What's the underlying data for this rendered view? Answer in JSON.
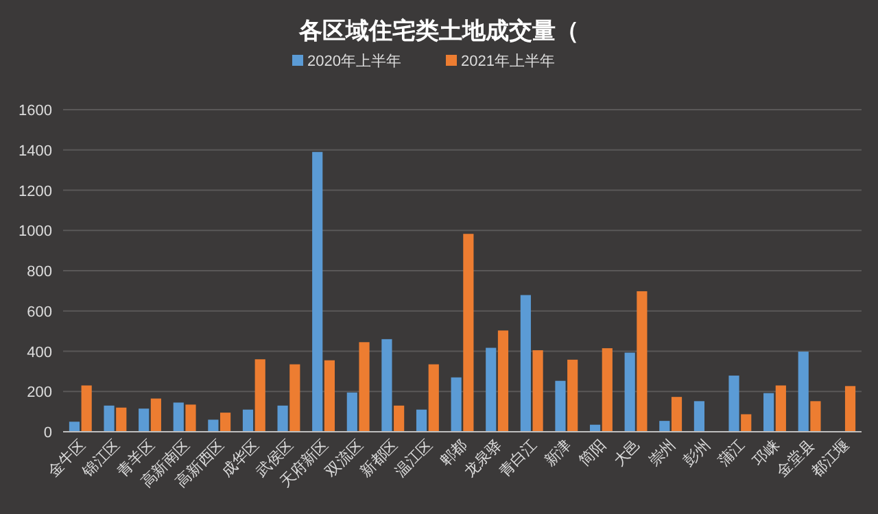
{
  "chart_data": {
    "type": "bar",
    "title": "各区域住宅类土地成交量（",
    "categories": [
      "金牛区",
      "锦江区",
      "青羊区",
      "高新南区",
      "高新西区",
      "成华区",
      "武侯区",
      "天府新区",
      "双流区",
      "新都区",
      "温江区",
      "郫都",
      "龙泉驿",
      "青白江",
      "新津",
      "简阳",
      "大邑",
      "崇州",
      "彭州",
      "蒲江",
      "邛崃",
      "金堂县",
      "都江堰"
    ],
    "series": [
      {
        "name": "2020年上半年",
        "color": "#5b9bd5",
        "values": [
          50,
          130,
          115,
          145,
          60,
          110,
          130,
          1390,
          195,
          460,
          110,
          270,
          417,
          679,
          253,
          35,
          393,
          54,
          152,
          279,
          192,
          398,
          null
        ]
      },
      {
        "name": "2021年上半年",
        "color": "#ed7d31",
        "values": [
          230,
          120,
          165,
          135,
          95,
          360,
          335,
          355,
          445,
          130,
          335,
          983,
          503,
          405,
          358,
          415,
          698,
          173,
          null,
          87,
          230,
          152,
          227
        ]
      }
    ],
    "ylim": [
      0,
      1600
    ],
    "yticks": [
      0,
      200,
      400,
      600,
      800,
      1000,
      1200,
      1400,
      1600
    ],
    "grid": "y",
    "legend": "top"
  }
}
